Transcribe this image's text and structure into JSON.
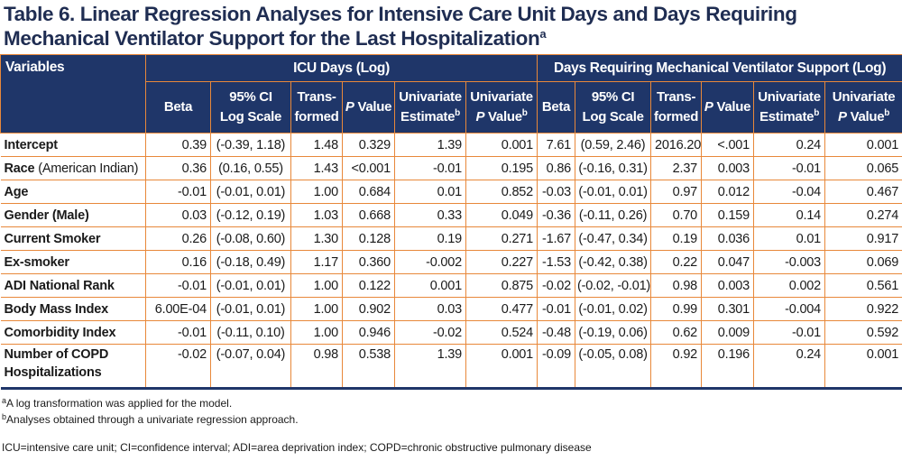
{
  "title": {
    "line1": "Table 6. Linear Regression Analyses for Intensive Care Unit Days and Days Requiring",
    "line2": "Mechanical Ventilator Support for the Last Hospitalization",
    "sup": "a"
  },
  "header": {
    "variables": "Variables",
    "group1": "ICU Days (Log)",
    "group2": "Days Requiring Mechanical Ventilator Support (Log)",
    "beta": "Beta",
    "ci_line1": "95% CI",
    "ci_line2": "Log Scale",
    "trans_line1": "Trans-",
    "trans_line2": "formed",
    "p_italic": "P",
    "p_rest": " Value",
    "uni_est_line1": "Univariate",
    "uni_est_line2": "Estimate",
    "uni_p_line1": "Univariate",
    "uni_p_italic": "P",
    "uni_p_rest": " Value",
    "sup_b": "b"
  },
  "rows": [
    {
      "var": "Intercept",
      "var_note": "",
      "icu": [
        "0.39",
        "(-0.39, 1.18)",
        "1.48",
        "0.329",
        "1.39",
        "0.001"
      ],
      "mv": [
        "7.61",
        "(0.59, 2.46)",
        "2016.20",
        "<.001",
        "0.24",
        "0.001"
      ]
    },
    {
      "var": "Race",
      "var_note": " (American Indian)",
      "icu": [
        "0.36",
        "(0.16, 0.55)",
        "1.43",
        "<0.001",
        "-0.01",
        "0.195"
      ],
      "mv": [
        "0.86",
        "(-0.16, 0.31)",
        "2.37",
        "0.003",
        "-0.01",
        "0.065"
      ]
    },
    {
      "var": "Age",
      "var_note": "",
      "icu": [
        "-0.01",
        "(-0.01, 0.01)",
        "1.00",
        "0.684",
        "0.01",
        "0.852"
      ],
      "mv": [
        "-0.03",
        "(-0.01, 0.01)",
        "0.97",
        "0.012",
        "-0.04",
        "0.467"
      ]
    },
    {
      "var": "Gender (Male)",
      "var_note": "",
      "icu": [
        "0.03",
        "(-0.12, 0.19)",
        "1.03",
        "0.668",
        "0.33",
        "0.049"
      ],
      "mv": [
        "-0.36",
        "(-0.11, 0.26)",
        "0.70",
        "0.159",
        "0.14",
        "0.274"
      ]
    },
    {
      "var": "Current Smoker",
      "var_note": "",
      "icu": [
        "0.26",
        "(-0.08, 0.60)",
        "1.30",
        "0.128",
        "0.19",
        "0.271"
      ],
      "mv": [
        "-1.67",
        "(-0.47, 0.34)",
        "0.19",
        "0.036",
        "0.01",
        "0.917"
      ]
    },
    {
      "var": "Ex-smoker",
      "var_note": "",
      "icu": [
        "0.16",
        "(-0.18, 0.49)",
        "1.17",
        "0.360",
        "-0.002",
        "0.227"
      ],
      "mv": [
        "-1.53",
        "(-0.42, 0.38)",
        "0.22",
        "0.047",
        "-0.003",
        "0.069"
      ]
    },
    {
      "var": "ADI National Rank",
      "var_note": "",
      "icu": [
        "-0.01",
        "(-0.01, 0.01)",
        "1.00",
        "0.122",
        "0.001",
        "0.875"
      ],
      "mv": [
        "-0.02",
        "(-0.02, -0.01)",
        "0.98",
        "0.003",
        "0.002",
        "0.561"
      ]
    },
    {
      "var": "Body Mass Index",
      "var_note": "",
      "icu": [
        "6.00E-04",
        "(-0.01, 0.01)",
        "1.00",
        "0.902",
        "0.03",
        "0.477"
      ],
      "mv": [
        "-0.01",
        "(-0.01, 0.02)",
        "0.99",
        "0.301",
        "-0.004",
        "0.922"
      ]
    },
    {
      "var": "Comorbidity Index",
      "var_note": "",
      "icu": [
        "-0.01",
        "(-0.11, 0.10)",
        "1.00",
        "0.946",
        "-0.02",
        "0.524"
      ],
      "mv": [
        "-0.48",
        "(-0.19, 0.06)",
        "0.62",
        "0.009",
        "-0.01",
        "0.592"
      ]
    },
    {
      "var": "Number of COPD Hospitalizations",
      "var_note": "",
      "icu": [
        "-0.02",
        "(-0.07, 0.04)",
        "0.98",
        "0.538",
        "1.39",
        "0.001"
      ],
      "mv": [
        "-0.09",
        "(-0.05, 0.08)",
        "0.92",
        "0.196",
        "0.24",
        "0.001"
      ]
    }
  ],
  "footnotes": {
    "a_sup": "a",
    "a_text": "A log transformation was applied for the model.",
    "b_sup": "b",
    "b_text": "Analyses obtained through a univariate regression approach.",
    "abbrev": "ICU=intensive care unit; CI=confidence interval; ADI=area deprivation index; COPD=chronic obstructive pulmonary disease"
  },
  "colors": {
    "header_bg": "#1f3669",
    "grid_lines": "#e8883a",
    "title_text": "#1f2d52"
  }
}
